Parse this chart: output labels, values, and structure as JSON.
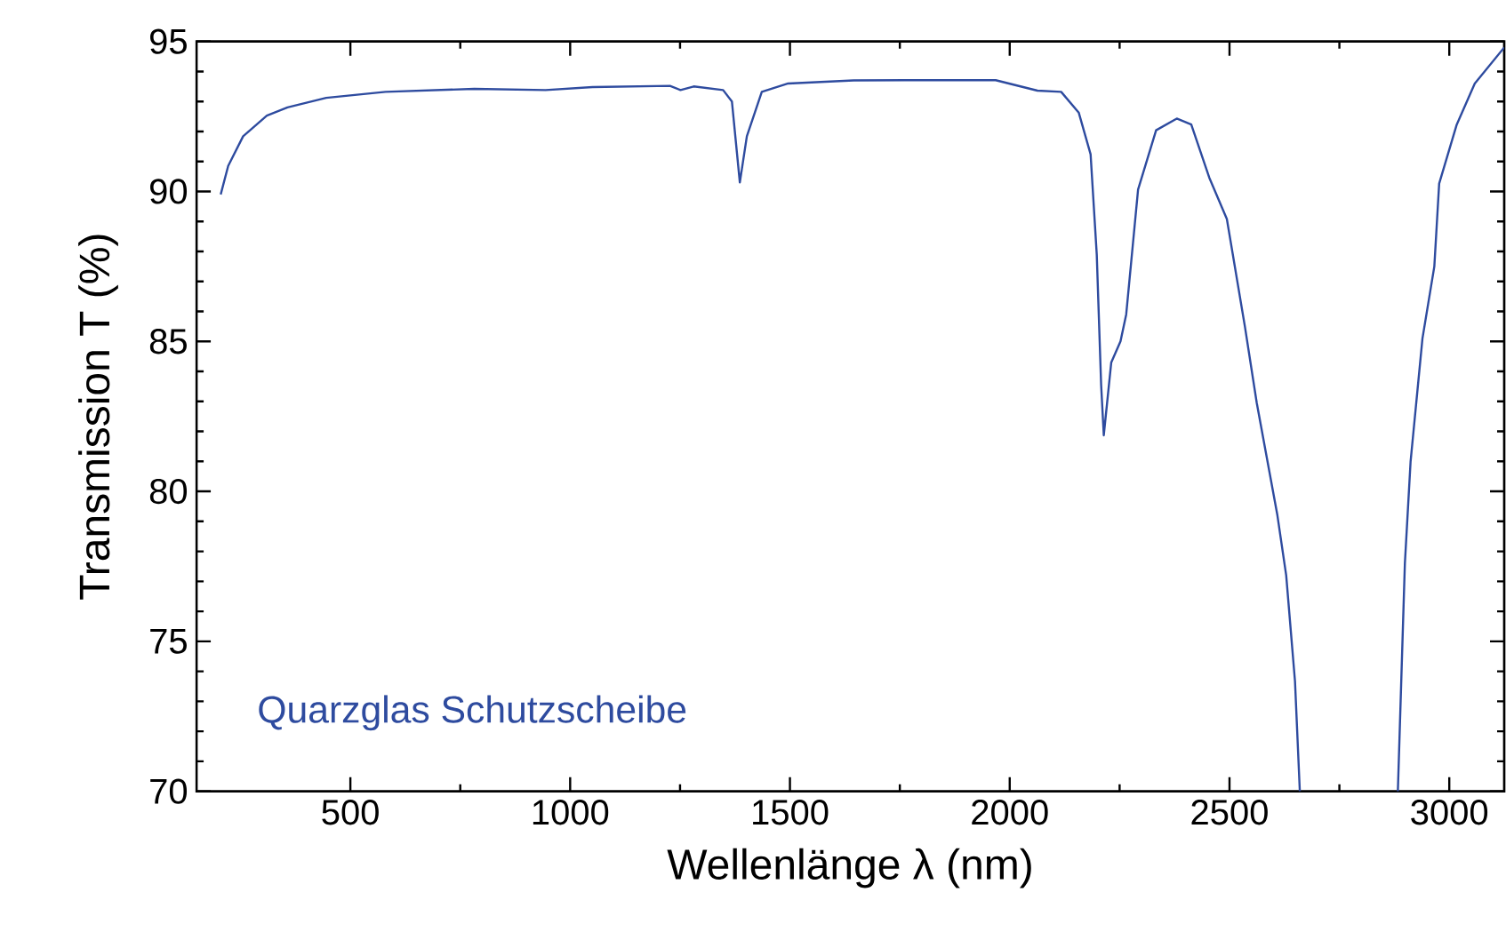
{
  "chart_data": {
    "type": "line",
    "xlabel": "Wellenlänge λ (nm)",
    "ylabel": "Transmission T (%)",
    "annotations": [
      "Quarzglas Schutzscheibe"
    ],
    "xlim": [
      150,
      3125
    ],
    "ylim": [
      70,
      95
    ],
    "xticks": [
      500,
      1000,
      1500,
      2000,
      2500,
      3000
    ],
    "yticks": [
      70,
      75,
      80,
      85,
      90,
      95
    ],
    "grid": false,
    "marker": "none",
    "line_style": "solid",
    "series": [
      {
        "color": "#2e4b9f",
        "x": [
          205,
          222,
          256,
          310,
          357,
          445,
          580,
          782,
          944,
          1051,
          1227,
          1251,
          1281,
          1348,
          1368,
          1386,
          1402,
          1436,
          1496,
          1645,
          1766,
          1968,
          2063,
          2117,
          2157,
          2184,
          2198,
          2208,
          2214,
          2231,
          2252,
          2265,
          2292,
          2333,
          2380,
          2413,
          2454,
          2494,
          2535,
          2562,
          2609,
          2629,
          2649,
          2660,
          2770,
          2883,
          2899,
          2912,
          2939,
          2966,
          2977,
          3017,
          3058,
          3125
        ],
        "values": [
          89.9,
          90.85,
          91.84,
          92.53,
          92.8,
          93.12,
          93.32,
          93.42,
          93.38,
          93.48,
          93.52,
          93.38,
          93.5,
          93.38,
          93.0,
          90.3,
          91.84,
          93.32,
          93.6,
          93.7,
          93.71,
          93.71,
          93.36,
          93.32,
          92.63,
          91.24,
          87.9,
          83.54,
          81.87,
          84.3,
          85.0,
          85.9,
          90.06,
          92.04,
          92.43,
          92.23,
          90.46,
          89.08,
          85.5,
          82.95,
          79.2,
          77.2,
          73.67,
          70.0,
          null,
          70.0,
          77.6,
          81.0,
          85.1,
          87.5,
          90.26,
          92.23,
          93.6,
          94.8
        ]
      }
    ]
  }
}
